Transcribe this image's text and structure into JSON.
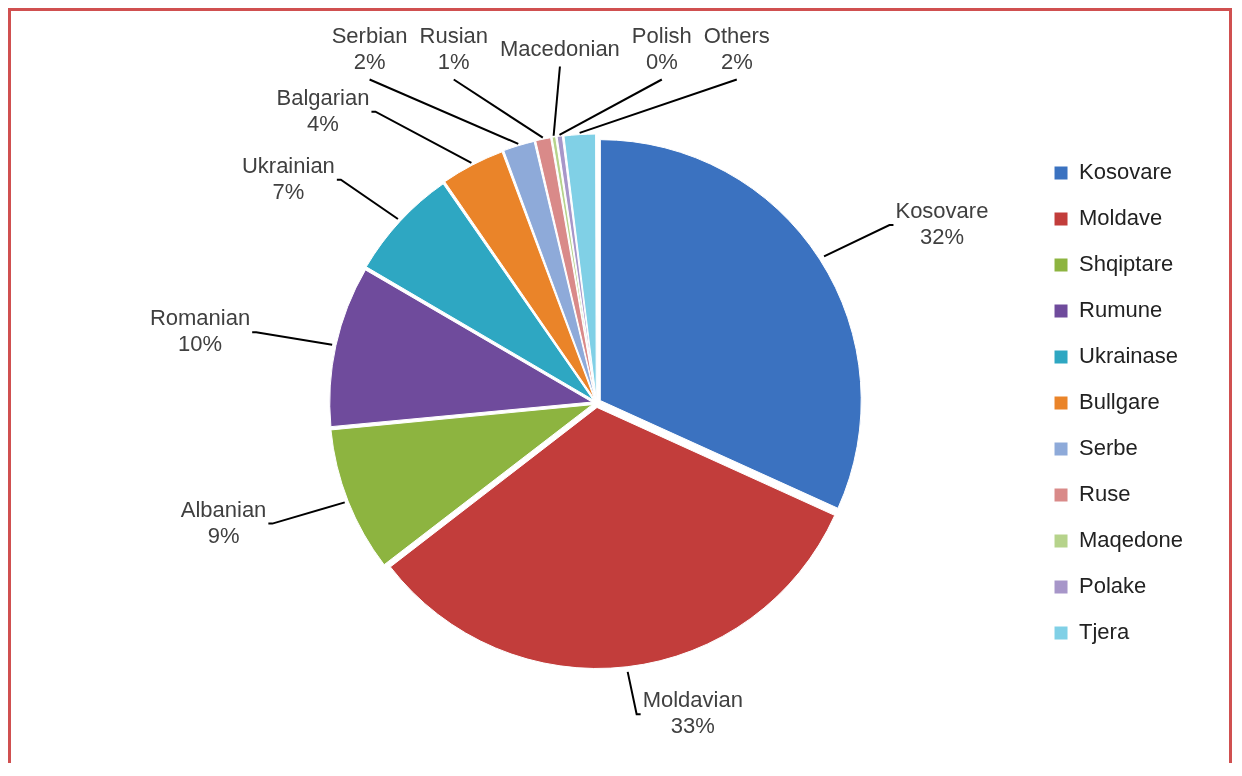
{
  "chart_data": {
    "type": "pie",
    "categories": [
      "Kosovare",
      "Moldave",
      "Shqiptare",
      "Rumune",
      "Ukrainase",
      "Bullgare",
      "Serbe",
      "Ruse",
      "Maqedone",
      "Polake",
      "Tjera"
    ],
    "values": [
      32,
      33,
      9,
      10,
      7,
      4,
      2,
      1,
      0.3,
      0.4,
      2
    ],
    "colors": [
      "#3b72c0",
      "#c23d3b",
      "#8db440",
      "#6f4b9c",
      "#2ea7c2",
      "#ea8429",
      "#8eaad9",
      "#d98a89",
      "#b6d38b",
      "#a796c9",
      "#80d0e6"
    ],
    "value_labels": [
      "Kosovare\n32%",
      "Moldavian\n33%",
      "Albanian\n9%",
      "Romanian\n10%",
      "Ukrainian\n7%",
      "Balgarian\n4%",
      "Serbian\n2%",
      "Rusian\n1%",
      "Macedonian",
      "Polish\n0%",
      "Others\n2%"
    ],
    "legend": "right"
  }
}
